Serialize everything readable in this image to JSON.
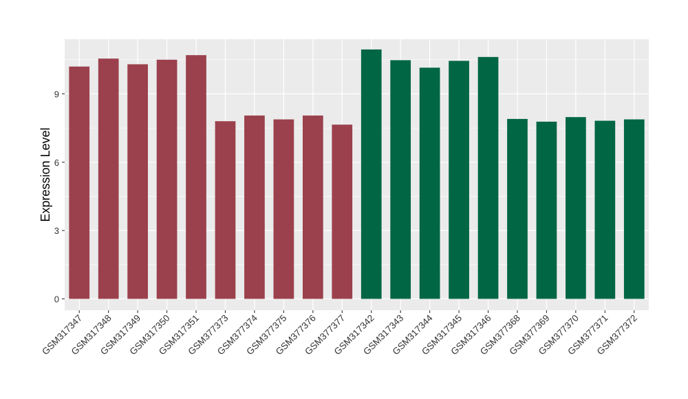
{
  "chart_data": {
    "type": "bar",
    "title": "",
    "xlabel": "",
    "ylabel": "Expression Level",
    "ylim": [
      -0.5,
      11.4
    ],
    "yticks": [
      0,
      3,
      6,
      9
    ],
    "grid": true,
    "legend": "none",
    "categories": [
      "GSM317347",
      "GSM317348",
      "GSM317349",
      "GSM317350",
      "GSM317351",
      "GSM377373",
      "GSM377374",
      "GSM377375",
      "GSM377376",
      "GSM377377",
      "GSM317342",
      "GSM317343",
      "GSM317344",
      "GSM317345",
      "GSM317346",
      "GSM377368",
      "GSM377369",
      "GSM377370",
      "GSM377371",
      "GSM377372"
    ],
    "values": [
      10.2,
      10.55,
      10.3,
      10.5,
      10.7,
      7.8,
      8.05,
      7.88,
      8.05,
      7.65,
      10.95,
      10.48,
      10.15,
      10.45,
      10.62,
      7.9,
      7.78,
      7.98,
      7.82,
      7.88
    ],
    "bar_colors": [
      "#9b414d",
      "#9b414d",
      "#9b414d",
      "#9b414d",
      "#9b414d",
      "#9b414d",
      "#9b414d",
      "#9b414d",
      "#9b414d",
      "#9b414d",
      "#006644",
      "#006644",
      "#006644",
      "#006644",
      "#006644",
      "#006644",
      "#006644",
      "#006644",
      "#006644",
      "#006644"
    ],
    "panel_background": "#ebebeb",
    "grid_color": "#ffffff"
  }
}
